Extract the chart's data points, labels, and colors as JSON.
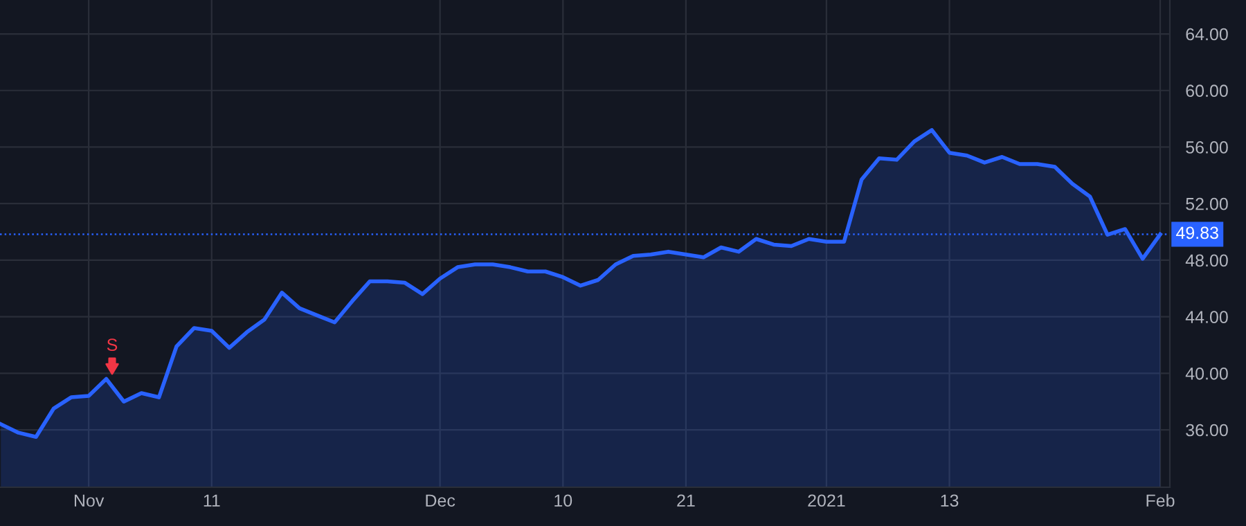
{
  "chart_data": {
    "type": "area",
    "categories": [
      null,
      null,
      null,
      null,
      null,
      "Nov",
      null,
      null,
      null,
      null,
      null,
      null,
      "11",
      null,
      null,
      null,
      null,
      null,
      null,
      null,
      null,
      null,
      null,
      null,
      null,
      "Dec",
      null,
      null,
      null,
      null,
      null,
      null,
      "10",
      null,
      null,
      null,
      null,
      null,
      null,
      "21",
      null,
      null,
      null,
      null,
      null,
      null,
      null,
      "2021",
      null,
      null,
      null,
      null,
      null,
      null,
      "13",
      null,
      null,
      null,
      null,
      null,
      null,
      null,
      null,
      null,
      null,
      null,
      "Feb"
    ],
    "series": [
      {
        "color": "#2962ff",
        "values": [
          36.4,
          35.8,
          35.5,
          37.5,
          38.3,
          38.4,
          39.6,
          38.0,
          38.6,
          38.3,
          41.9,
          43.2,
          43.0,
          41.8,
          42.9,
          43.8,
          45.7,
          44.6,
          44.1,
          43.6,
          45.1,
          46.5,
          46.5,
          46.4,
          45.6,
          46.7,
          47.5,
          47.7,
          47.7,
          47.5,
          47.2,
          47.2,
          46.8,
          46.2,
          46.6,
          47.7,
          48.3,
          48.4,
          48.6,
          48.4,
          48.2,
          48.9,
          48.6,
          49.5,
          49.1,
          49.0,
          49.5,
          49.3,
          49.3,
          53.7,
          55.2,
          55.1,
          56.4,
          57.2,
          55.6,
          55.4,
          54.9,
          55.3,
          54.8,
          54.8,
          54.6,
          53.4,
          52.5,
          49.8,
          50.2,
          48.1,
          49.83
        ]
      }
    ],
    "ylim": [
      31.94,
      66.4
    ],
    "yticks": [
      {
        "value": 36,
        "label": "36.00"
      },
      {
        "value": 40,
        "label": "40.00"
      },
      {
        "value": 44,
        "label": "44.00"
      },
      {
        "value": 48,
        "label": "48.00"
      },
      {
        "value": 52,
        "label": "52.00"
      },
      {
        "value": 56,
        "label": "56.00"
      },
      {
        "value": 60,
        "label": "60.00"
      },
      {
        "value": 64,
        "label": "64.00"
      }
    ],
    "ref_lines": [
      {
        "axis": "y",
        "value": 49.83,
        "label": "49.83",
        "color": "#2962ff",
        "line_style": "dotted"
      }
    ],
    "annotations": [
      "S"
    ],
    "grid": true
  }
}
